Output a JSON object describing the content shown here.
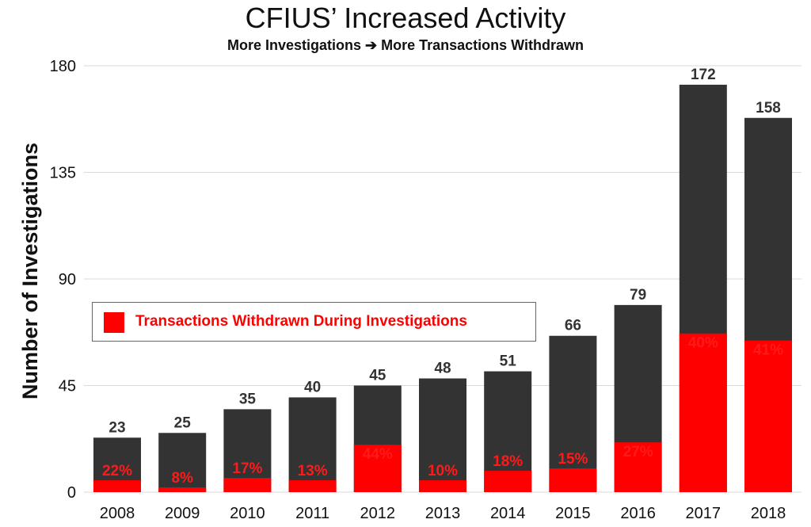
{
  "chart_data": {
    "type": "bar",
    "title": "CFIUS’ Increased Activity",
    "subtitle": "More Investigations ➔ More Transactions Withdrawn",
    "ylabel": "Number of Investigations",
    "xlabel": "",
    "ylim": [
      0,
      180
    ],
    "yticks": [
      "0",
      "45",
      "90",
      "135",
      "180"
    ],
    "categories": [
      "2008",
      "2009",
      "2010",
      "2011",
      "2012",
      "2013",
      "2014",
      "2015",
      "2016",
      "2017",
      "2018"
    ],
    "series": [
      {
        "values": [
          23,
          25,
          35,
          40,
          45,
          48,
          51,
          66,
          79,
          172,
          158
        ]
      },
      {
        "name": "Transactions Withdrawn During Investigations",
        "values": [
          5,
          2,
          6,
          5,
          20,
          5,
          9,
          10,
          21,
          67,
          64
        ]
      }
    ],
    "total_labels": [
      "23",
      "25",
      "35",
      "40",
      "45",
      "48",
      "51",
      "66",
      "79",
      "172",
      "158"
    ],
    "percent_labels": [
      "22%",
      "8%",
      "17%",
      "13%",
      "44%",
      "10%",
      "18%",
      "15%",
      "27%",
      "40%",
      "41%"
    ],
    "grid": true,
    "legend_position": "center-left",
    "colors": {
      "total": "#333333",
      "withdrawn": "#ff0000",
      "grid": "#d9d9d9"
    }
  }
}
